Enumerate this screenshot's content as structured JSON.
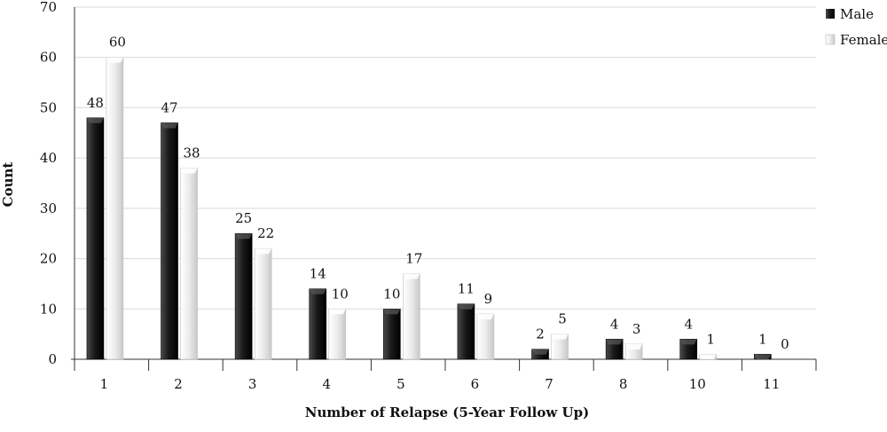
{
  "chart_data": {
    "type": "bar",
    "title": "",
    "xlabel": "Number of Relapse (5-Year Follow Up)",
    "ylabel": "Count",
    "ylim": [
      0,
      70
    ],
    "yticks": [
      0,
      10,
      20,
      30,
      40,
      50,
      60,
      70
    ],
    "categories": [
      "1",
      "2",
      "3",
      "4",
      "5",
      "6",
      "7",
      "8",
      "10",
      "11"
    ],
    "series": [
      {
        "name": "Male",
        "values": [
          48,
          47,
          25,
          14,
          10,
          11,
          2,
          4,
          4,
          1
        ],
        "color": "#1a1a1a"
      },
      {
        "name": "Female",
        "values": [
          60,
          38,
          22,
          10,
          17,
          9,
          5,
          3,
          1,
          0
        ],
        "color": "#e6e6e6"
      }
    ],
    "grid": true,
    "legend_position": "top-right",
    "data_labels": true
  }
}
